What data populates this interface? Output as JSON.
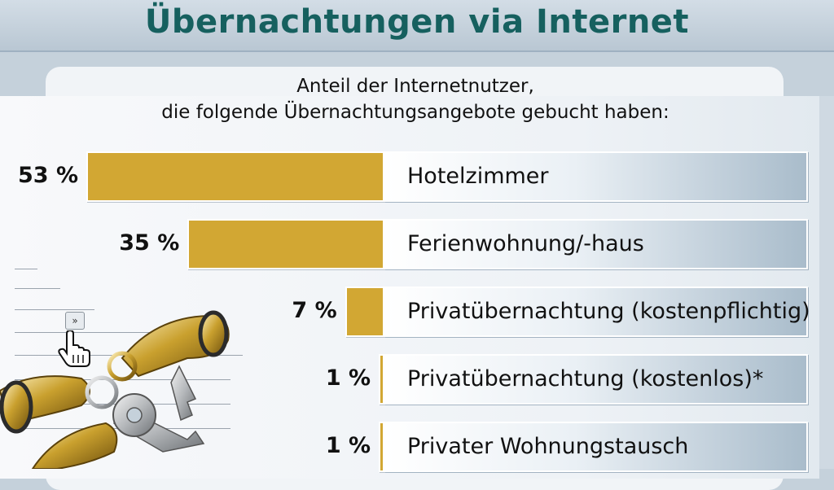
{
  "chart_data": {
    "type": "bar",
    "title": "Übernachtungen via Internet",
    "subtitle_lines": [
      "Anteil der Internetnutzer,",
      "die folgende Übernachtungsangebote gebucht haben:"
    ],
    "categories": [
      "Hotelzimmer",
      "Ferienwohnung/-haus",
      "Privatübernachtung (kostenpflichtig)",
      "Privatübernachtung (kostenlos)*",
      "Privater Wohnungstausch"
    ],
    "values": [
      53,
      35,
      7,
      1,
      1
    ],
    "value_labels": [
      "53 %",
      "35 %",
      "7 %",
      "1 %",
      "1 %"
    ],
    "unit": "%",
    "orientation": "horizontal",
    "bar_color": "#d2a733",
    "title_color": "#16605f"
  },
  "decor": {
    "nav_icon": "fast-forward-icon",
    "cursor_icon": "hand-pointer-icon",
    "illustration": "keys-image"
  }
}
